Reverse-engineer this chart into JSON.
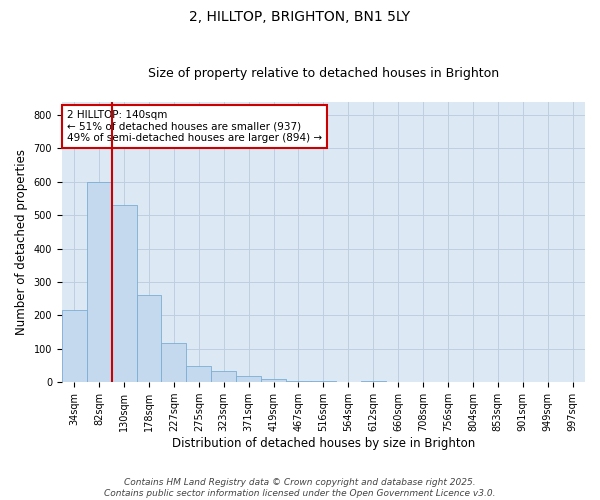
{
  "title": "2, HILLTOP, BRIGHTON, BN1 5LY",
  "subtitle": "Size of property relative to detached houses in Brighton",
  "xlabel": "Distribution of detached houses by size in Brighton",
  "ylabel": "Number of detached properties",
  "bar_values": [
    215,
    600,
    530,
    260,
    118,
    50,
    33,
    18,
    10,
    5,
    5,
    0,
    5,
    0,
    0,
    0,
    0,
    0,
    0,
    0,
    0
  ],
  "x_labels": [
    "34sqm",
    "82sqm",
    "130sqm",
    "178sqm",
    "227sqm",
    "275sqm",
    "323sqm",
    "371sqm",
    "419sqm",
    "467sqm",
    "516sqm",
    "564sqm",
    "612sqm",
    "660sqm",
    "708sqm",
    "756sqm",
    "804sqm",
    "853sqm",
    "901sqm",
    "949sqm",
    "997sqm"
  ],
  "bar_color": "#c5d9ee",
  "bar_edge_color": "#7aadd4",
  "vline_x": 1.5,
  "vline_color": "#cc0000",
  "annotation_line1": "2 HILLTOP: 140sqm",
  "annotation_line2": "← 51% of detached houses are smaller (937)",
  "annotation_line3": "49% of semi-detached houses are larger (894) →",
  "annotation_box_color": "#cc0000",
  "annotation_bg_color": "#ffffff",
  "ylim": [
    0,
    840
  ],
  "yticks": [
    0,
    100,
    200,
    300,
    400,
    500,
    600,
    700,
    800
  ],
  "grid_color": "#c0cfe0",
  "bg_color": "#dce8f4",
  "footer1": "Contains HM Land Registry data © Crown copyright and database right 2025.",
  "footer2": "Contains public sector information licensed under the Open Government Licence v3.0.",
  "title_fontsize": 10,
  "subtitle_fontsize": 9,
  "axis_label_fontsize": 8.5,
  "tick_fontsize": 7,
  "annotation_fontsize": 7.5,
  "footer_fontsize": 6.5
}
